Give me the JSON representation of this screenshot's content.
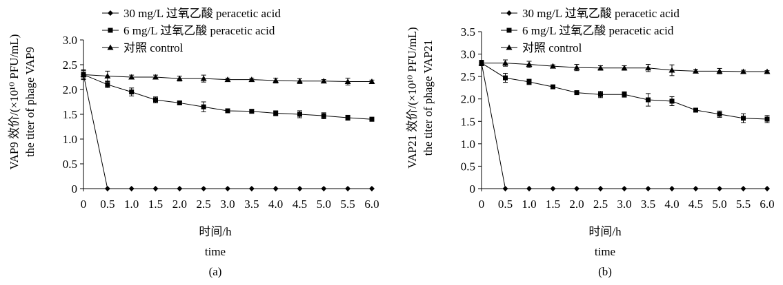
{
  "chart_data": [
    {
      "type": "line",
      "panel_label": "(a)",
      "ylabel_line1": "VAP9 效价/(×10¹⁰ PFU/mL)",
      "ylabel_line2": "the titer of phage VAP9",
      "xlabel_line1": "时间/h",
      "xlabel_line2": "time",
      "x": [
        0,
        0.5,
        1.0,
        1.5,
        2.0,
        2.5,
        3.0,
        3.5,
        4.0,
        4.5,
        5.0,
        5.5,
        6.0
      ],
      "x_tick_labels": [
        "0",
        "0.5",
        "1.0",
        "1.5",
        "2.0",
        "2.5",
        "3.0",
        "3.5",
        "4.0",
        "4.5",
        "5.0",
        "5.5",
        "6.0"
      ],
      "ylim": [
        0,
        3.0
      ],
      "y_ticks": [
        0,
        0.5,
        1.0,
        1.5,
        2.0,
        2.5,
        3.0
      ],
      "y_tick_labels": [
        "0",
        "0.5",
        "1.0",
        "1.5",
        "2.0",
        "2.5",
        "3.0"
      ],
      "legend_position": "top-left",
      "series": [
        {
          "name": "30 mg/L 过氧乙酸 peracetic acid",
          "marker": "diamond",
          "values": [
            2.3,
            0,
            0,
            0,
            0,
            0,
            0,
            0,
            0,
            0,
            0,
            0,
            0
          ],
          "errors": [
            0.08,
            0,
            0,
            0,
            0,
            0,
            0,
            0,
            0,
            0,
            0,
            0,
            0
          ]
        },
        {
          "name": "6 mg/L 过氧乙酸 peracetic acid",
          "marker": "square",
          "values": [
            2.3,
            2.1,
            1.95,
            1.79,
            1.73,
            1.65,
            1.57,
            1.56,
            1.52,
            1.5,
            1.47,
            1.43,
            1.4
          ],
          "errors": [
            0.05,
            0.06,
            0.08,
            0.06,
            0.03,
            0.1,
            0.03,
            0.03,
            0.05,
            0.07,
            0.06,
            0.05,
            0.04
          ]
        },
        {
          "name": "对照 control",
          "marker": "triangle",
          "values": [
            2.3,
            2.27,
            2.25,
            2.25,
            2.22,
            2.22,
            2.2,
            2.2,
            2.18,
            2.17,
            2.17,
            2.16,
            2.16
          ],
          "errors": [
            0.1,
            0.1,
            0.04,
            0.04,
            0.05,
            0.07,
            0.03,
            0.03,
            0.05,
            0.05,
            0.03,
            0.07,
            0.03
          ]
        }
      ]
    },
    {
      "type": "line",
      "panel_label": "(b)",
      "ylabel_line1": "VAP21 效价/(×10¹⁰ PFU/mL)",
      "ylabel_line2": "the titer of phage VAP21",
      "xlabel_line1": "时间/h",
      "xlabel_line2": "time",
      "x": [
        0,
        0.5,
        1.0,
        1.5,
        2.0,
        2.5,
        3.0,
        3.5,
        4.0,
        4.5,
        5.0,
        5.5,
        6.0
      ],
      "x_tick_labels": [
        "0",
        "0.5",
        "1.0",
        "1.5",
        "2.0",
        "2.5",
        "3.0",
        "3.5",
        "4.0",
        "4.5",
        "5.0",
        "5.5",
        "6.0"
      ],
      "ylim": [
        0,
        3.5
      ],
      "y_ticks": [
        0,
        0.5,
        1.0,
        1.5,
        2.0,
        2.5,
        3.0,
        3.5
      ],
      "y_tick_labels": [
        "0",
        "0.5",
        "1.0",
        "1.5",
        "2.0",
        "2.5",
        "3.0",
        "3.5"
      ],
      "legend_position": "top-left",
      "series": [
        {
          "name": "30 mg/L 过氧乙酸 peracetic acid",
          "marker": "diamond",
          "values": [
            2.8,
            0,
            0,
            0,
            0,
            0,
            0,
            0,
            0,
            0,
            0,
            0,
            0
          ],
          "errors": [
            0.06,
            0,
            0,
            0,
            0,
            0,
            0,
            0,
            0,
            0,
            0,
            0,
            0
          ]
        },
        {
          "name": "6 mg/L 过氧乙酸 peracetic acid",
          "marker": "square",
          "values": [
            2.8,
            2.47,
            2.38,
            2.27,
            2.14,
            2.1,
            2.1,
            1.98,
            1.95,
            1.75,
            1.66,
            1.57,
            1.55
          ],
          "errors": [
            0.06,
            0.1,
            0.06,
            0.04,
            0.03,
            0.07,
            0.06,
            0.14,
            0.1,
            0.02,
            0.07,
            0.1,
            0.08
          ]
        },
        {
          "name": "对照 control",
          "marker": "triangle",
          "values": [
            2.8,
            2.8,
            2.77,
            2.73,
            2.7,
            2.69,
            2.69,
            2.69,
            2.64,
            2.62,
            2.62,
            2.61,
            2.61
          ],
          "errors": [
            0.05,
            0.07,
            0.07,
            0.03,
            0.07,
            0.05,
            0.05,
            0.08,
            0.12,
            0.04,
            0.06,
            0.03,
            0.02
          ]
        }
      ]
    }
  ]
}
